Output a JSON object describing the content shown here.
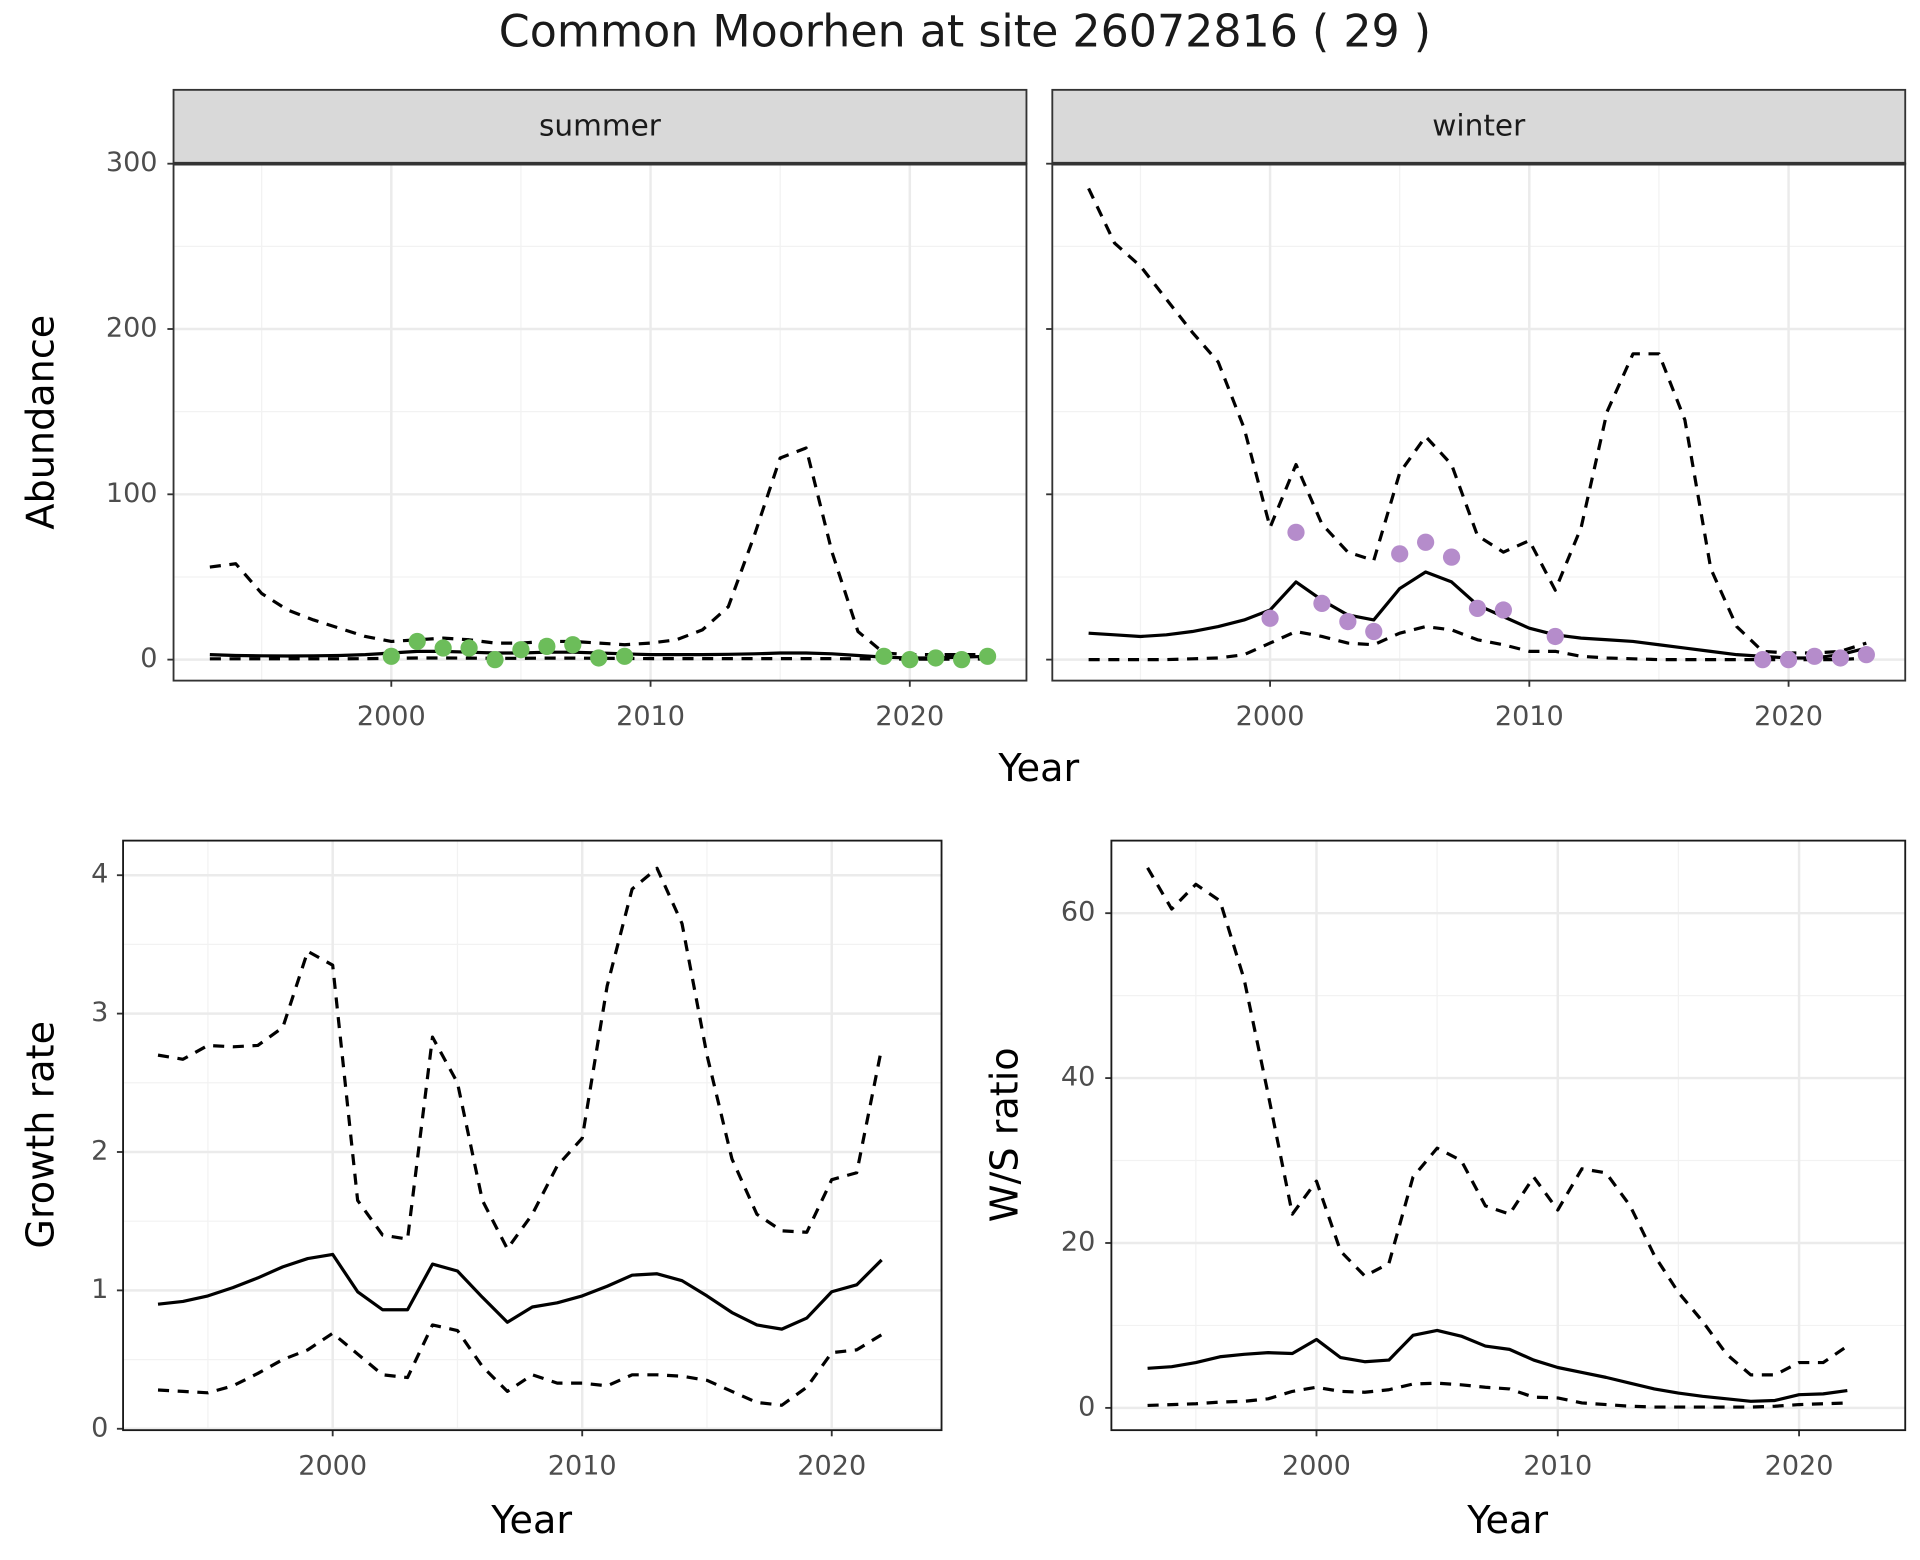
{
  "title": "Common Moorhen at site 26072816 ( 29 )",
  "chart_data": [
    {
      "type": "line",
      "title": "summer",
      "xlabel": "Year",
      "ylabel": "Abundance",
      "x": [
        1993,
        1994,
        1995,
        1996,
        1997,
        1998,
        1999,
        2000,
        2001,
        2002,
        2003,
        2004,
        2005,
        2006,
        2007,
        2008,
        2009,
        2010,
        2011,
        2012,
        2013,
        2014,
        2015,
        2016,
        2017,
        2018,
        2019,
        2020,
        2021,
        2022,
        2023
      ],
      "xlim": [
        1991.6,
        2024.5
      ],
      "xticks": [
        2000,
        2010,
        2020
      ],
      "ylim": [
        -12.7,
        300
      ],
      "yticks": [
        0,
        100,
        200,
        300
      ],
      "grid": true,
      "series": [
        {
          "mark": "line",
          "style": "dashed",
          "color": "#000000",
          "values": [
            56,
            58,
            40,
            30,
            24,
            19,
            14,
            11,
            12,
            13,
            12,
            10,
            10,
            11,
            11,
            10,
            9,
            10,
            12,
            18,
            32,
            75,
            122,
            128,
            65,
            17,
            4,
            3,
            3,
            3,
            3
          ]
        },
        {
          "mark": "line",
          "style": "solid",
          "color": "#000000",
          "values": [
            3,
            2.5,
            2.3,
            2.2,
            2.3,
            2.5,
            3,
            4,
            5,
            5,
            4.5,
            4,
            4,
            4.5,
            4.5,
            4,
            3.5,
            3,
            3,
            3,
            3.2,
            3.5,
            4,
            4,
            3.5,
            2.5,
            1.5,
            1,
            1,
            1.5,
            2
          ]
        },
        {
          "mark": "line",
          "style": "dashed",
          "color": "#000000",
          "values": [
            0.5,
            0.5,
            0.5,
            0.5,
            0.5,
            0.5,
            0.6,
            0.8,
            1,
            1,
            0.9,
            0.8,
            0.8,
            0.9,
            0.9,
            0.8,
            0.7,
            0.6,
            0.6,
            0.6,
            0.6,
            0.6,
            0.6,
            0.6,
            0.6,
            0.5,
            0.4,
            0.3,
            0.3,
            0.3,
            0.4
          ]
        },
        {
          "mark": "point",
          "color": "#6cbd5a",
          "values": [
            null,
            null,
            null,
            null,
            null,
            null,
            null,
            2,
            11,
            7,
            7,
            0,
            6,
            8,
            9,
            1,
            2,
            null,
            null,
            null,
            null,
            null,
            null,
            null,
            null,
            null,
            2,
            0,
            1,
            0,
            2
          ]
        }
      ]
    },
    {
      "type": "line",
      "title": "winter",
      "x": [
        1993,
        1994,
        1995,
        1996,
        1997,
        1998,
        1999,
        2000,
        2001,
        2002,
        2003,
        2004,
        2005,
        2006,
        2007,
        2008,
        2009,
        2010,
        2011,
        2012,
        2013,
        2014,
        2015,
        2016,
        2017,
        2018,
        2019,
        2020,
        2021,
        2022,
        2023
      ],
      "xlim": [
        1991.6,
        2024.5
      ],
      "xticks": [
        2000,
        2010,
        2020
      ],
      "ylim": [
        -12.7,
        300
      ],
      "yticks": [
        0,
        100,
        200,
        300
      ],
      "grid": true,
      "series": [
        {
          "mark": "line",
          "style": "dashed",
          "color": "#000000",
          "values": [
            285,
            252,
            238,
            218,
            198,
            180,
            140,
            80,
            118,
            82,
            65,
            60,
            113,
            135,
            118,
            75,
            65,
            72,
            42,
            80,
            150,
            185,
            185,
            145,
            55,
            20,
            5,
            4,
            4,
            5,
            10
          ]
        },
        {
          "mark": "line",
          "style": "solid",
          "color": "#000000",
          "values": [
            16,
            15,
            14,
            15,
            17,
            20,
            24,
            30,
            47,
            36,
            27,
            24,
            43,
            53,
            47,
            33,
            26,
            19,
            15,
            13,
            12,
            11,
            9,
            7,
            5,
            3,
            2,
            1,
            1,
            3,
            7
          ]
        },
        {
          "mark": "line",
          "style": "dashed",
          "color": "#000000",
          "values": [
            0,
            0,
            0,
            0,
            0.5,
            1,
            3,
            10,
            17,
            14,
            10,
            9,
            16,
            20,
            18,
            12,
            9,
            5,
            5,
            2,
            1,
            0.5,
            0,
            0,
            0,
            0,
            0,
            0,
            0,
            0,
            1
          ]
        },
        {
          "mark": "point",
          "color": "#b58ccb",
          "values": [
            null,
            null,
            null,
            null,
            null,
            null,
            null,
            25,
            77,
            34,
            23,
            17,
            64,
            71,
            62,
            31,
            30,
            null,
            14,
            null,
            null,
            null,
            null,
            null,
            null,
            null,
            0,
            0,
            2,
            1,
            3
          ]
        }
      ]
    },
    {
      "type": "line",
      "xlabel": "Year",
      "ylabel": "Growth rate",
      "x": [
        1993,
        1994,
        1995,
        1996,
        1997,
        1998,
        1999,
        2000,
        2001,
        2002,
        2003,
        2004,
        2005,
        2006,
        2007,
        2008,
        2009,
        2010,
        2011,
        2012,
        2013,
        2014,
        2015,
        2016,
        2017,
        2018,
        2019,
        2020,
        2021,
        2022
      ],
      "xlim": [
        1991.6,
        2024.4
      ],
      "xticks": [
        2000,
        2010,
        2020
      ],
      "ylim": [
        -0.01,
        4.25
      ],
      "yticks": [
        0,
        1,
        2,
        3,
        4
      ],
      "grid": true,
      "series": [
        {
          "mark": "line",
          "style": "dashed",
          "color": "#000000",
          "values": [
            2.7,
            2.67,
            2.77,
            2.76,
            2.77,
            2.9,
            3.45,
            3.35,
            1.65,
            1.4,
            1.37,
            2.83,
            2.5,
            1.65,
            1.3,
            1.55,
            1.9,
            2.1,
            3.2,
            3.9,
            4.05,
            3.65,
            2.7,
            1.95,
            1.55,
            1.43,
            1.42,
            1.8,
            1.85,
            2.75
          ]
        },
        {
          "mark": "line",
          "style": "solid",
          "color": "#000000",
          "values": [
            0.9,
            0.92,
            0.96,
            1.02,
            1.09,
            1.17,
            1.23,
            1.26,
            0.99,
            0.86,
            0.86,
            1.19,
            1.14,
            0.95,
            0.77,
            0.88,
            0.91,
            0.96,
            1.03,
            1.11,
            1.12,
            1.07,
            0.96,
            0.84,
            0.75,
            0.72,
            0.8,
            0.99,
            1.04,
            1.22
          ]
        },
        {
          "mark": "line",
          "style": "dashed",
          "color": "#000000",
          "values": [
            0.28,
            0.27,
            0.26,
            0.31,
            0.4,
            0.5,
            0.57,
            0.69,
            0.54,
            0.39,
            0.37,
            0.75,
            0.71,
            0.45,
            0.27,
            0.39,
            0.33,
            0.33,
            0.31,
            0.39,
            0.39,
            0.38,
            0.35,
            0.27,
            0.19,
            0.17,
            0.3,
            0.55,
            0.57,
            0.68
          ]
        }
      ]
    },
    {
      "type": "line",
      "xlabel": "Year",
      "ylabel": "W/S ratio",
      "x": [
        1993,
        1994,
        1995,
        1996,
        1997,
        1998,
        1999,
        2000,
        2001,
        2002,
        2003,
        2004,
        2005,
        2006,
        2007,
        2008,
        2009,
        2010,
        2011,
        2012,
        2013,
        2014,
        2015,
        2016,
        2017,
        2018,
        2019,
        2020,
        2021,
        2022
      ],
      "xlim": [
        1991.5,
        2024.4
      ],
      "xticks": [
        2000,
        2010,
        2020
      ],
      "ylim": [
        -2.7,
        68.8
      ],
      "yticks": [
        0,
        20,
        40,
        60
      ],
      "grid": true,
      "series": [
        {
          "mark": "line",
          "style": "dashed",
          "color": "#000000",
          "values": [
            65.5,
            60.5,
            63.5,
            61.5,
            52,
            38,
            23.5,
            27.5,
            19,
            16,
            17.5,
            28,
            31.5,
            30,
            24.5,
            23.5,
            28,
            24,
            29,
            28.5,
            24.5,
            18.5,
            14,
            10.5,
            6.5,
            4,
            4,
            5.5,
            5.5,
            7.5
          ]
        },
        {
          "mark": "line",
          "style": "solid",
          "color": "#000000",
          "values": [
            4.8,
            5.0,
            5.5,
            6.2,
            6.5,
            6.7,
            6.6,
            8.3,
            6.1,
            5.6,
            5.8,
            8.8,
            9.4,
            8.7,
            7.5,
            7.1,
            5.8,
            4.9,
            4.3,
            3.7,
            3.0,
            2.3,
            1.8,
            1.4,
            1.1,
            0.8,
            0.9,
            1.6,
            1.7,
            2.1
          ]
        },
        {
          "mark": "line",
          "style": "dashed",
          "color": "#000000",
          "values": [
            0.3,
            0.4,
            0.5,
            0.7,
            0.8,
            1.1,
            2.0,
            2.5,
            2.0,
            1.9,
            2.2,
            2.9,
            3.0,
            2.8,
            2.5,
            2.3,
            1.3,
            1.2,
            0.6,
            0.4,
            0.2,
            0.1,
            0.1,
            0.1,
            0.1,
            0.1,
            0.2,
            0.4,
            0.5,
            0.6
          ]
        }
      ]
    }
  ]
}
